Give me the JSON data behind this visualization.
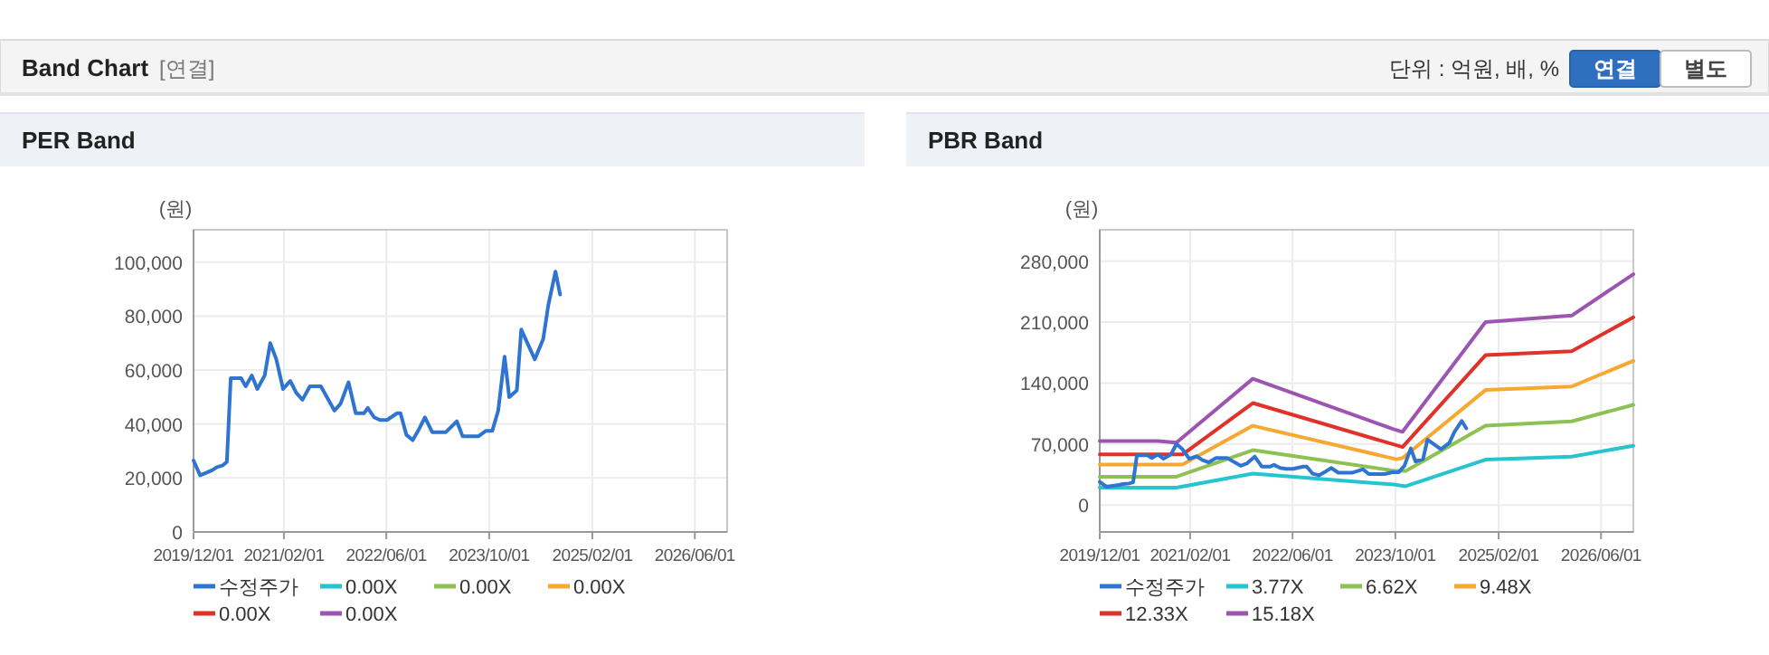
{
  "chart_data": [
    {
      "type": "other",
      "title": "Band Chart",
      "annotations": [
        "[연결]",
        "단위 : 억원, 배, %",
        "연결",
        "별도"
      ]
    },
    {
      "type": "line",
      "title": "PER Band",
      "ylabel": "(원)",
      "grid": true,
      "legend": "bottom",
      "xlim": [
        "2019-12-01",
        "2026-11-01"
      ],
      "xticks": [
        {
          "value": "2019-12-01",
          "label": "2019/12/01"
        },
        {
          "value": "2021-02-01",
          "label": "2021/02/01"
        },
        {
          "value": "2022-06-01",
          "label": "2022/06/01"
        },
        {
          "value": "2023-10-01",
          "label": "2023/10/01"
        },
        {
          "value": "2025-02-01",
          "label": "2025/02/01"
        },
        {
          "value": "2026-06-01",
          "label": "2026/06/01"
        }
      ],
      "ylim": [
        0,
        112000
      ],
      "yticks": [
        0,
        {
          "value": 20000,
          "label": "20,000"
        },
        {
          "value": 40000,
          "label": "40,000"
        },
        {
          "value": 60000,
          "label": "60,000"
        },
        {
          "value": 80000,
          "label": "80,000"
        },
        {
          "value": 100000,
          "label": "100,000"
        }
      ],
      "series": [
        {
          "name": "수정주가",
          "color": "#2f74d0",
          "x": [
            "2019-12-01",
            "2020-01-01",
            "2020-02-01",
            "2020-03-01",
            "2020-03-20",
            "2020-04-18",
            "2020-05-07",
            "2020-05-25",
            "2020-07-13",
            "2020-08-04",
            "2020-09-02",
            "2020-09-28",
            "2020-11-02",
            "2020-11-28",
            "2020-12-27",
            "2021-01-28",
            "2021-03-03",
            "2021-04-01",
            "2021-04-30",
            "2021-06-04",
            "2021-07-26",
            "2021-09-28",
            "2021-10-27",
            "2021-12-04",
            "2022-01-07",
            "2022-02-15",
            "2022-03-05",
            "2022-04-04",
            "2022-05-02",
            "2022-06-04",
            "2022-07-22",
            "2022-08-07",
            "2022-09-04",
            "2022-10-04",
            "2022-11-02",
            "2022-12-01",
            "2023-01-04",
            "2023-03-10",
            "2023-05-01",
            "2023-05-28",
            "2023-08-12",
            "2023-09-16",
            "2023-10-16",
            "2023-11-13",
            "2023-12-13",
            "2024-01-04",
            "2024-02-09",
            "2024-03-01",
            "2024-05-04",
            "2024-06-13",
            "2024-07-07",
            "2024-08-10",
            "2024-09-01"
          ],
          "values": [
            26500,
            21000,
            22000,
            23000,
            24000,
            24700,
            26000,
            57000,
            57000,
            54000,
            58000,
            53000,
            58000,
            70000,
            64000,
            53000,
            56000,
            51500,
            49000,
            54000,
            54000,
            45000,
            47500,
            55500,
            44000,
            44000,
            46000,
            42500,
            41500,
            41500,
            44000,
            44000,
            36000,
            34000,
            38000,
            42500,
            37000,
            37000,
            41000,
            35500,
            35500,
            37500,
            37500,
            45000,
            65000,
            50000,
            52500,
            75000,
            64000,
            71500,
            84000,
            96500,
            88000
          ]
        },
        {
          "name": "0.00X",
          "color": "#26c4cf"
        },
        {
          "name": "0.00X",
          "color": "#8dc153"
        },
        {
          "name": "0.00X",
          "color": "#f6a830"
        },
        {
          "name": "0.00X",
          "color": "#e03229"
        },
        {
          "name": "0.00X",
          "color": "#9d55b2"
        }
      ]
    },
    {
      "type": "line",
      "title": "PBR Band",
      "ylabel": "(원)",
      "grid": true,
      "legend": "bottom",
      "xlim": [
        "2019-12-01",
        "2026-11-01"
      ],
      "xticks": [
        {
          "value": "2019-12-01",
          "label": "2019/12/01"
        },
        {
          "value": "2021-02-01",
          "label": "2021/02/01"
        },
        {
          "value": "2022-06-01",
          "label": "2022/06/01"
        },
        {
          "value": "2023-10-01",
          "label": "2023/10/01"
        },
        {
          "value": "2025-02-01",
          "label": "2025/02/01"
        },
        {
          "value": "2026-06-01",
          "label": "2026/06/01"
        }
      ],
      "ylim": [
        -31000,
        316000
      ],
      "yticks": [
        0,
        {
          "value": 70000,
          "label": "70,000"
        },
        {
          "value": 140000,
          "label": "140,000"
        },
        {
          "value": 210000,
          "label": "210,000"
        },
        {
          "value": 280000,
          "label": "280,000"
        }
      ],
      "series": [
        {
          "name": "수정주가",
          "color": "#2f74d0",
          "x": [
            "2019-12-01",
            "2020-01-01",
            "2020-02-01",
            "2020-03-01",
            "2020-03-20",
            "2020-04-18",
            "2020-05-07",
            "2020-05-25",
            "2020-07-13",
            "2020-08-04",
            "2020-09-02",
            "2020-09-28",
            "2020-11-02",
            "2020-11-28",
            "2020-12-27",
            "2021-01-28",
            "2021-03-03",
            "2021-04-01",
            "2021-04-30",
            "2021-06-04",
            "2021-07-26",
            "2021-09-28",
            "2021-10-27",
            "2021-12-04",
            "2022-01-07",
            "2022-02-15",
            "2022-03-05",
            "2022-04-04",
            "2022-05-02",
            "2022-06-04",
            "2022-07-22",
            "2022-08-07",
            "2022-09-04",
            "2022-10-04",
            "2022-11-02",
            "2022-12-01",
            "2023-01-04",
            "2023-03-10",
            "2023-05-01",
            "2023-05-28",
            "2023-08-12",
            "2023-09-16",
            "2023-10-16",
            "2023-11-13",
            "2023-12-13",
            "2024-01-04",
            "2024-02-09",
            "2024-03-01",
            "2024-05-04",
            "2024-06-13",
            "2024-07-07",
            "2024-08-10",
            "2024-09-01"
          ],
          "values": [
            26500,
            21000,
            22000,
            23000,
            24000,
            24700,
            26000,
            57000,
            57000,
            54000,
            58000,
            53000,
            58000,
            70000,
            64000,
            53000,
            56000,
            51500,
            49000,
            54000,
            54000,
            45000,
            47500,
            55500,
            44000,
            44000,
            46000,
            42500,
            41500,
            41500,
            44000,
            44000,
            36000,
            34000,
            38000,
            42500,
            37000,
            37000,
            41000,
            35500,
            35500,
            37500,
            37500,
            45000,
            65000,
            50000,
            52500,
            75000,
            64000,
            71500,
            84000,
            96500,
            88000
          ]
        },
        {
          "name": "3.77X",
          "color": "#26c4cf",
          "x": [
            "2019-12-01",
            "2020-11-28",
            "2021-11-25",
            "2023-09-22",
            "2023-11-19",
            "2024-12-01",
            "2026-01-13",
            "2026-11-01"
          ],
          "values": [
            20000,
            20000,
            36000,
            23500,
            21500,
            52000,
            55500,
            68000
          ]
        },
        {
          "name": "6.62X",
          "color": "#8dc153",
          "x": [
            "2019-12-01",
            "2020-11-28",
            "2021-11-25",
            "2023-10-06",
            "2023-11-19",
            "2024-12-01",
            "2026-01-13",
            "2026-11-01"
          ],
          "values": [
            32500,
            32500,
            63000,
            39000,
            39000,
            91000,
            96000,
            115000
          ]
        },
        {
          "name": "9.48X",
          "color": "#f6a830",
          "x": [
            "2019-12-01",
            "2020-12-27",
            "2021-11-25",
            "2023-10-06",
            "2023-11-04",
            "2024-12-01",
            "2026-01-13",
            "2026-11-01"
          ],
          "values": [
            46500,
            46500,
            91000,
            52500,
            54000,
            132000,
            136000,
            165500
          ]
        },
        {
          "name": "12.33X",
          "color": "#e03229",
          "x": [
            "2019-12-01",
            "2020-12-27",
            "2021-11-25",
            "2023-11-04",
            "2024-12-01",
            "2026-01-13",
            "2026-11-01"
          ],
          "values": [
            58000,
            58000,
            117000,
            66500,
            172000,
            176500,
            215500
          ]
        },
        {
          "name": "15.18X",
          "color": "#9d55b2",
          "x": [
            "2019-12-01",
            "2020-09-02",
            "2020-11-28",
            "2021-11-25",
            "2023-09-22",
            "2023-11-04",
            "2024-12-01",
            "2026-01-13",
            "2026-11-01"
          ],
          "values": [
            73500,
            73500,
            71500,
            145000,
            87000,
            84000,
            210000,
            217500,
            265000
          ]
        }
      ]
    }
  ]
}
